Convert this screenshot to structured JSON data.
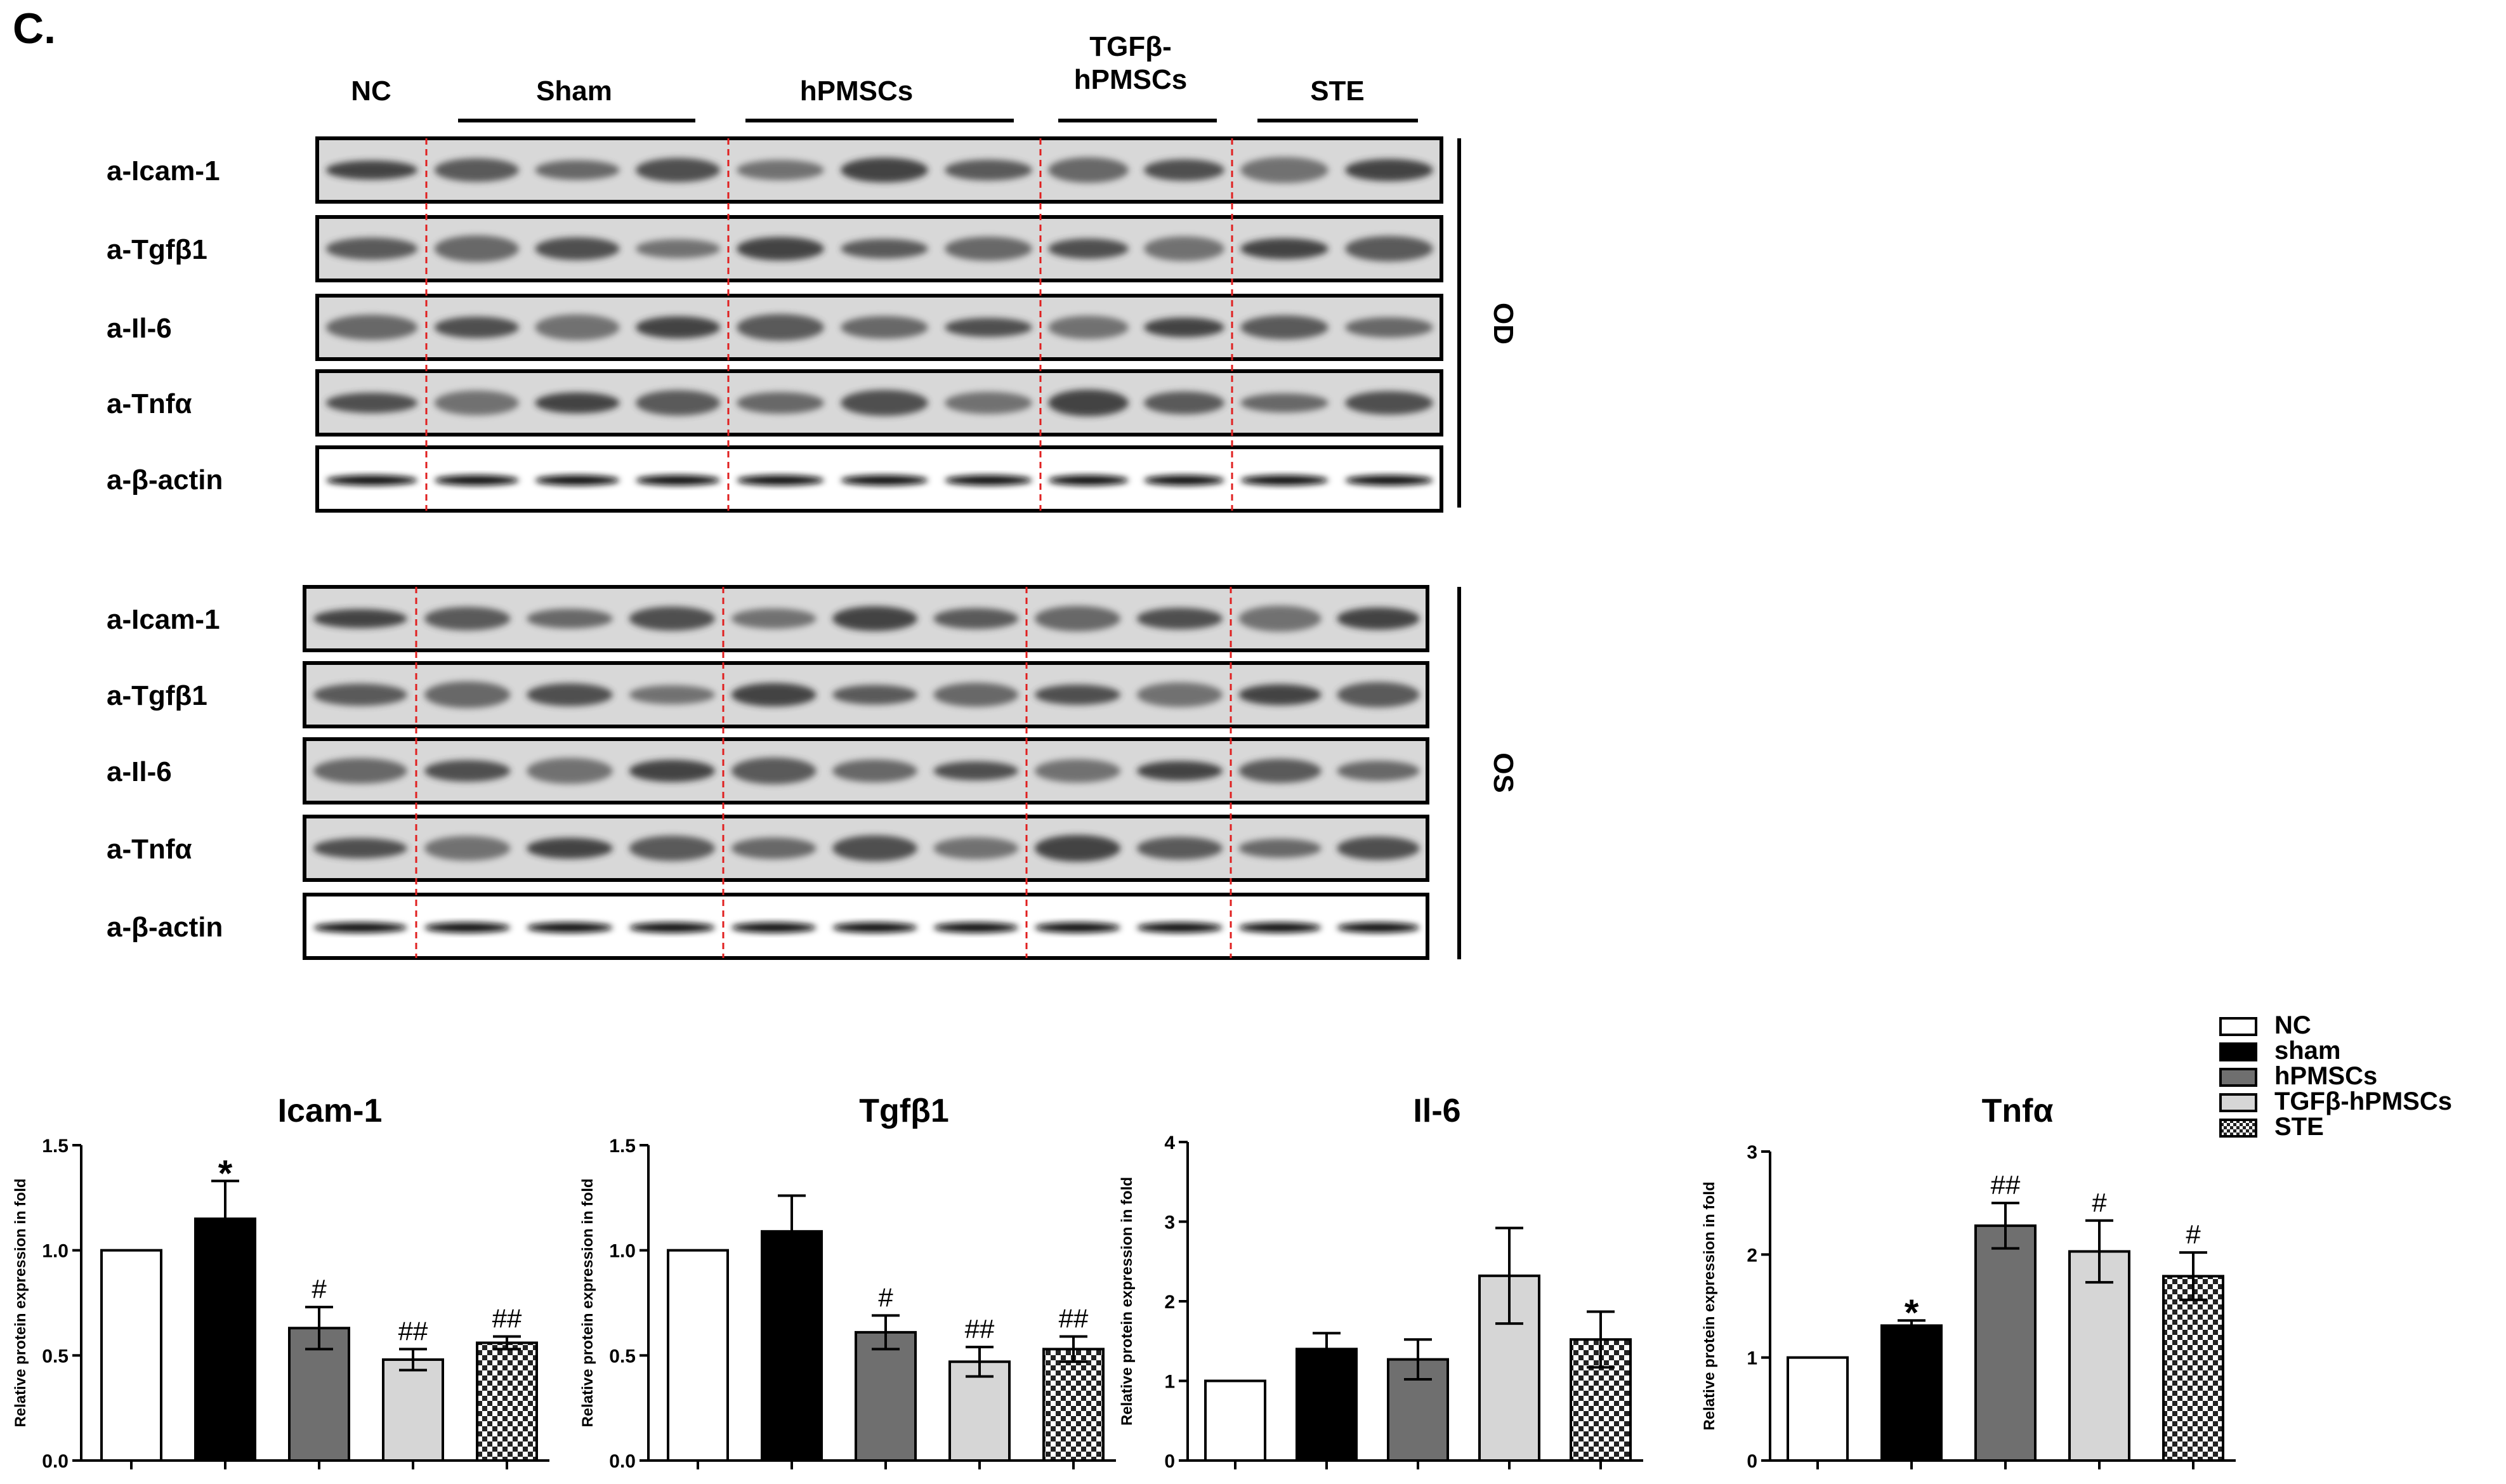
{
  "panel_label": "C.",
  "blot_groups": [
    "NC",
    "Sham",
    "hPMSCs",
    "TGFβ-\nhPMSCs",
    "STE"
  ],
  "group_lane_counts": [
    1,
    3,
    3,
    2,
    2
  ],
  "blot_rows": [
    "a-Icam-1",
    "a-Tgfβ1",
    "a-Il-6",
    "a-Tnfα",
    "a-β-actin"
  ],
  "blot_sections": [
    "OD",
    "OS"
  ],
  "legend": [
    "NC",
    "sham",
    "hPMSCs",
    "TGFβ-hPMSCs",
    "STE"
  ],
  "bar_styles": {
    "fills": [
      "#ffffff",
      "#000000",
      "#6f6f6f",
      "#d6d6d6",
      "checker"
    ],
    "error_color": "#000000"
  },
  "chart_data": [
    {
      "type": "bar",
      "title": "Icam-1",
      "ylabel": "Relative protein expression in fold",
      "ylim": [
        0,
        1.5
      ],
      "yticks": [
        "0.0",
        "0.5",
        "1.0",
        "1.5"
      ],
      "categories": [
        "NC",
        "sham",
        "hPMSCs",
        "TGFβ-hPMSCs",
        "STE"
      ],
      "values": [
        1.0,
        1.15,
        0.63,
        0.48,
        0.56
      ],
      "errors": [
        0,
        0.18,
        0.1,
        0.05,
        0.03
      ],
      "annotations": [
        "",
        "*",
        "#",
        "##",
        "##"
      ]
    },
    {
      "type": "bar",
      "title": "Tgfβ1",
      "ylabel": "Relative protein expression in fold",
      "ylim": [
        0,
        1.5
      ],
      "yticks": [
        "0.0",
        "0.5",
        "1.0",
        "1.5"
      ],
      "categories": [
        "NC",
        "sham",
        "hPMSCs",
        "TGFβ-hPMSCs",
        "STE"
      ],
      "values": [
        1.0,
        1.09,
        0.61,
        0.47,
        0.53
      ],
      "errors": [
        0,
        0.17,
        0.08,
        0.07,
        0.06
      ],
      "annotations": [
        "",
        "",
        "#",
        "##",
        "##"
      ]
    },
    {
      "type": "bar",
      "title": "Il-6",
      "ylabel": "Relative protein expression in fold",
      "ylim": [
        0,
        4
      ],
      "yticks": [
        "0",
        "1",
        "2",
        "3",
        "4"
      ],
      "categories": [
        "NC",
        "sham",
        "hPMSCs",
        "TGFβ-hPMSCs",
        "STE"
      ],
      "values": [
        1.0,
        1.4,
        1.27,
        2.32,
        1.52
      ],
      "errors": [
        0,
        0.2,
        0.25,
        0.6,
        0.35
      ],
      "annotations": [
        "",
        "",
        "",
        "",
        ""
      ]
    },
    {
      "type": "bar",
      "title": "Tnfα",
      "ylabel": "Relative protein expression in fold",
      "ylim": [
        0,
        3
      ],
      "yticks": [
        "0",
        "1",
        "2",
        "3"
      ],
      "categories": [
        "NC",
        "sham",
        "hPMSCs",
        "TGFβ-hPMSCs",
        "STE"
      ],
      "values": [
        1.0,
        1.31,
        2.28,
        2.03,
        1.79
      ],
      "errors": [
        0,
        0.05,
        0.22,
        0.3,
        0.23
      ],
      "annotations": [
        "",
        "*",
        "##",
        "#",
        "#"
      ]
    }
  ]
}
